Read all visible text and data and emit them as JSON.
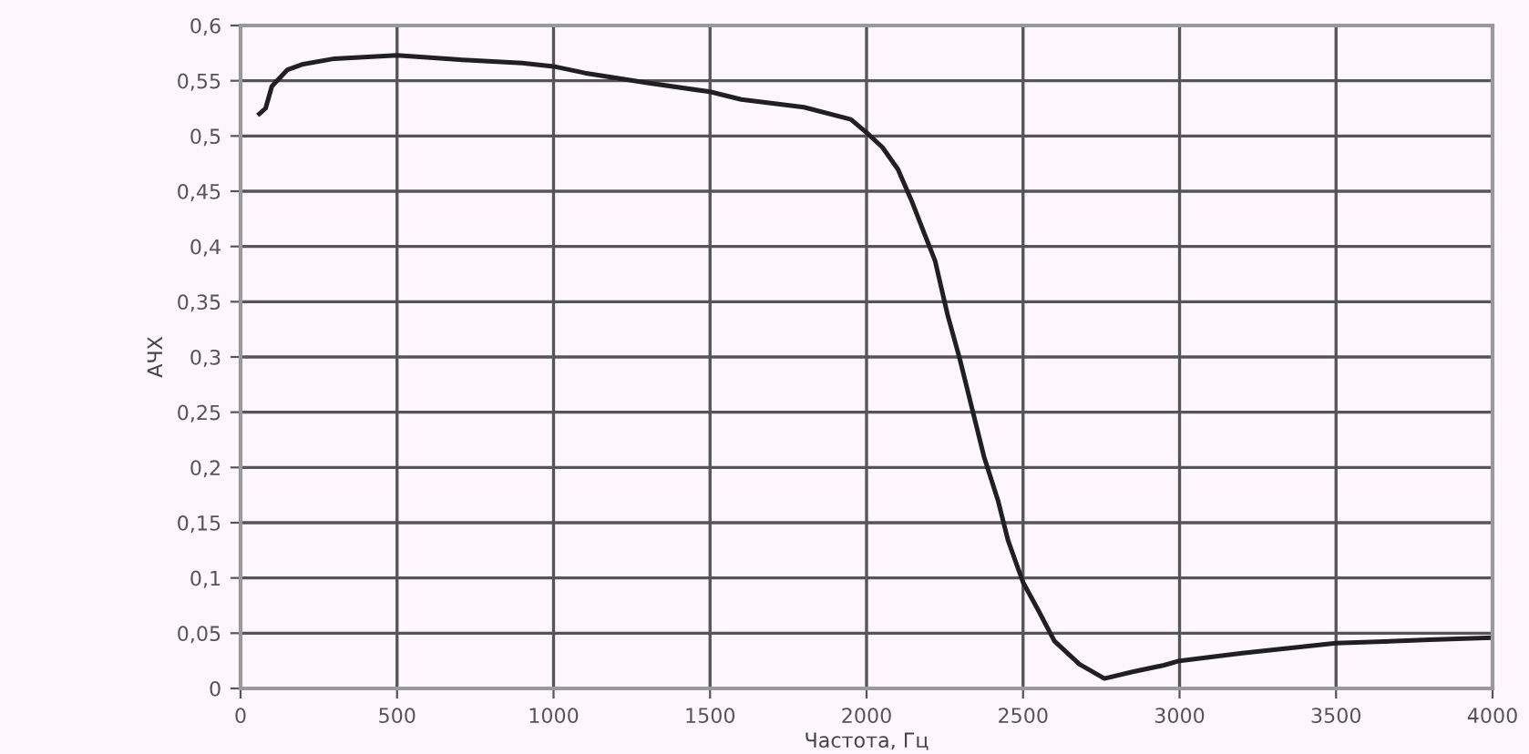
{
  "chart_data": {
    "type": "line",
    "xlabel": "Частота, Гц",
    "ylabel": "АЧХ",
    "x": [
      60,
      80,
      100,
      150,
      200,
      300,
      500,
      700,
      900,
      1000,
      1100,
      1300,
      1500,
      1600,
      1800,
      1950,
      2000,
      2050,
      2100,
      2143,
      2180,
      2219,
      2259,
      2298,
      2340,
      2375,
      2420,
      2452,
      2500,
      2550,
      2600,
      2680,
      2760,
      2850,
      2950,
      3000,
      3200,
      3500,
      3800,
      4000
    ],
    "series": [
      {
        "color": "#202020",
        "values": [
          0.52,
          0.525,
          0.545,
          0.56,
          0.565,
          0.57,
          0.573,
          0.569,
          0.566,
          0.563,
          0.557,
          0.548,
          0.54,
          0.533,
          0.526,
          0.515,
          0.503,
          0.49,
          0.47,
          0.442,
          0.415,
          0.387,
          0.338,
          0.298,
          0.25,
          0.21,
          0.17,
          0.134,
          0.096,
          0.07,
          0.043,
          0.022,
          0.009,
          0.015,
          0.021,
          0.025,
          0.032,
          0.041,
          0.044,
          0.046
        ]
      }
    ],
    "xlim": [
      0,
      4000
    ],
    "xticks": [
      0,
      500,
      1000,
      1500,
      2000,
      2500,
      3000,
      3500,
      4000
    ],
    "ylim": [
      0,
      0.6
    ],
    "yticks": [
      {
        "value": 0,
        "label": "0"
      },
      {
        "value": 0.05,
        "label": "0,05"
      },
      {
        "value": 0.1,
        "label": "0,1"
      },
      {
        "value": 0.15,
        "label": "0,15"
      },
      {
        "value": 0.2,
        "label": "0,2"
      },
      {
        "value": 0.25,
        "label": "0,25"
      },
      {
        "value": 0.3,
        "label": "0,3"
      },
      {
        "value": 0.35,
        "label": "0,35"
      },
      {
        "value": 0.4,
        "label": "0,4"
      },
      {
        "value": 0.45,
        "label": "0,45"
      },
      {
        "value": 0.5,
        "label": "0,5"
      },
      {
        "value": 0.55,
        "label": "0,55"
      },
      {
        "value": 0.6,
        "label": "0,6"
      }
    ],
    "grid": true,
    "marker": "none",
    "line_style": "solid"
  }
}
